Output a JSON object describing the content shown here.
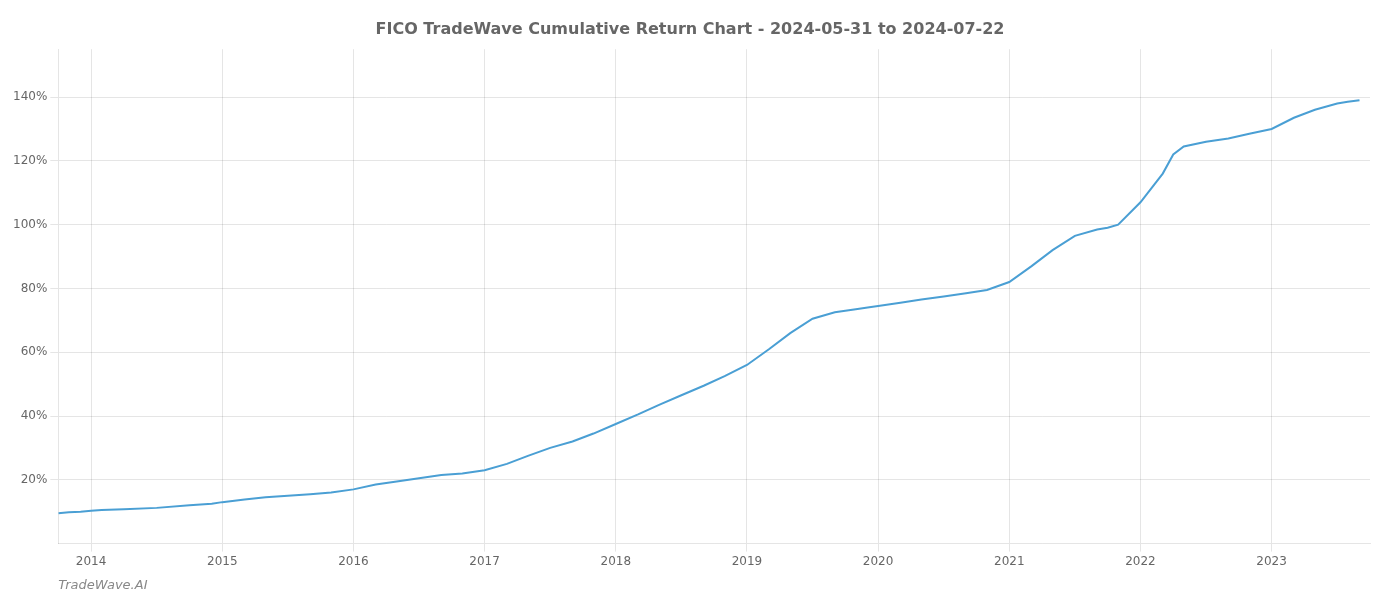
{
  "chart_data": {
    "type": "line",
    "title": "FICO TradeWave Cumulative Return Chart - 2024-05-31 to 2024-07-22",
    "annotations": [
      "TradeWave.AI"
    ],
    "x": [
      2013.75,
      2013.83,
      2013.92,
      2014.0,
      2014.08,
      2014.25,
      2014.5,
      2014.75,
      2014.92,
      2015.0,
      2015.17,
      2015.33,
      2015.5,
      2015.67,
      2015.83,
      2016.0,
      2016.17,
      2016.33,
      2016.5,
      2016.67,
      2016.83,
      2017.0,
      2017.17,
      2017.33,
      2017.5,
      2017.67,
      2017.83,
      2018.0,
      2018.17,
      2018.33,
      2018.5,
      2018.67,
      2018.83,
      2019.0,
      2019.17,
      2019.33,
      2019.5,
      2019.67,
      2019.75,
      2019.83,
      2019.92,
      2020.0,
      2020.17,
      2020.33,
      2020.5,
      2020.67,
      2020.83,
      2021.0,
      2021.17,
      2021.33,
      2021.5,
      2021.67,
      2021.75,
      2021.83,
      2022.0,
      2022.17,
      2022.25,
      2022.33,
      2022.5,
      2022.67,
      2022.83,
      2023.0,
      2023.17,
      2023.33,
      2023.5,
      2023.58,
      2023.67
    ],
    "values": [
      9.5,
      9.8,
      10.0,
      10.3,
      10.5,
      10.8,
      11.2,
      12.0,
      12.5,
      13.0,
      13.8,
      14.5,
      15.0,
      15.5,
      16.0,
      17.0,
      18.5,
      19.5,
      20.5,
      21.5,
      22.0,
      23.0,
      25.0,
      27.5,
      30.0,
      32.0,
      34.5,
      37.5,
      40.5,
      43.5,
      46.5,
      49.5,
      52.5,
      56.0,
      61.0,
      66.0,
      70.5,
      72.5,
      73.0,
      73.5,
      74.0,
      74.5,
      75.5,
      76.5,
      77.5,
      78.5,
      79.5,
      82.0,
      87.0,
      92.0,
      96.5,
      98.5,
      99.0,
      100.0,
      107.0,
      116.0,
      122.0,
      124.5,
      126.0,
      127.0,
      128.5,
      130.0,
      133.5,
      136.0,
      138.0,
      138.5,
      139.0
    ],
    "color": "#4a9fd4",
    "xlim": [
      2013.75,
      2023.75
    ],
    "xticks": [
      2014,
      2015,
      2016,
      2017,
      2018,
      2019,
      2020,
      2021,
      2022,
      2023
    ],
    "ylim": [
      0,
      155
    ],
    "yticks": [
      {
        "value": 20,
        "label": "20%"
      },
      {
        "value": 40,
        "label": "40%"
      },
      {
        "value": 60,
        "label": "60%"
      },
      {
        "value": 80,
        "label": "80%"
      },
      {
        "value": 100,
        "label": "100%"
      },
      {
        "value": 120,
        "label": "120%"
      },
      {
        "value": 140,
        "label": "140%"
      }
    ],
    "grid": true
  }
}
